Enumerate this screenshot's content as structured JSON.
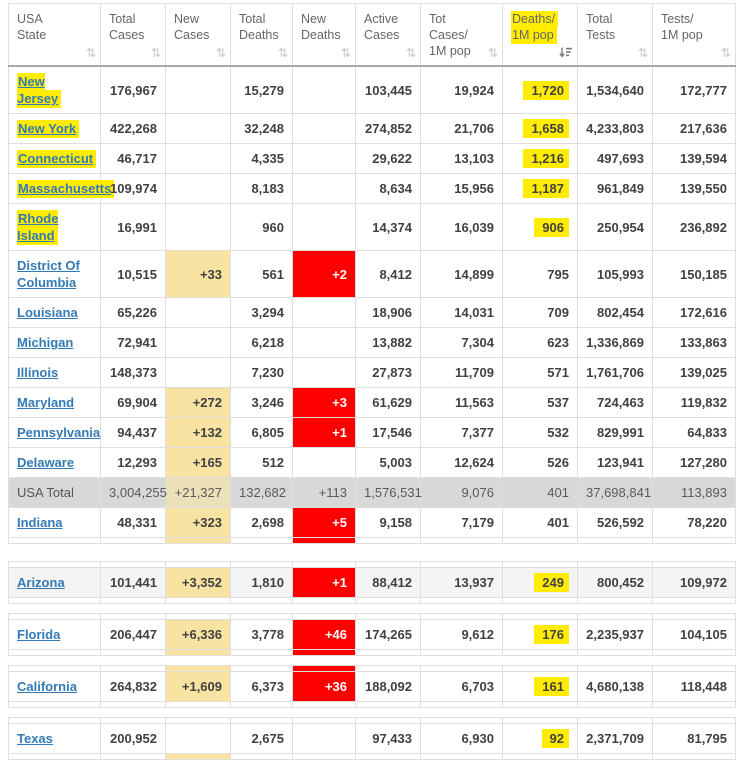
{
  "colors": {
    "highlight_marker": "#ffec00",
    "new_cases_bg": "#f8e3a3",
    "new_deaths_bg": "#ff0000",
    "total_row_bg": "#d8d8d8",
    "link_blue": "#337ab7",
    "header_text": "#666666",
    "cell_text": "#414141"
  },
  "table": {
    "columns": [
      {
        "id": "state",
        "label": "USA State",
        "label_lines": [
          "USA",
          "State"
        ],
        "sort": "unsorted",
        "highlighted": false
      },
      {
        "id": "total_cases",
        "label": "Total Cases",
        "label_lines": [
          "Total",
          "Cases"
        ],
        "sort": "unsorted",
        "highlighted": false
      },
      {
        "id": "new_cases",
        "label": "New Cases",
        "label_lines": [
          "New",
          "Cases"
        ],
        "sort": "unsorted",
        "highlighted": false
      },
      {
        "id": "total_deaths",
        "label": "Total Deaths",
        "label_lines": [
          "Total",
          "Deaths"
        ],
        "sort": "unsorted",
        "highlighted": false
      },
      {
        "id": "new_deaths",
        "label": "New Deaths",
        "label_lines": [
          "New",
          "Deaths"
        ],
        "sort": "unsorted",
        "highlighted": false
      },
      {
        "id": "active_cases",
        "label": "Active Cases",
        "label_lines": [
          "Active",
          "Cases"
        ],
        "sort": "unsorted",
        "highlighted": false
      },
      {
        "id": "cases_1m",
        "label": "Tot Cases/1M pop",
        "label_lines": [
          "Tot Cases/",
          "1M pop"
        ],
        "sort": "unsorted",
        "highlighted": false
      },
      {
        "id": "deaths_1m",
        "label": "Deaths/1M pop",
        "label_lines": [
          "Deaths/",
          "1M pop"
        ],
        "sort": "desc",
        "highlighted": true
      },
      {
        "id": "tests",
        "label": "Total Tests",
        "label_lines": [
          "Total",
          "Tests"
        ],
        "sort": "unsorted",
        "highlighted": false
      },
      {
        "id": "tests_1m",
        "label": "Tests/1M pop",
        "label_lines": [
          "Tests/",
          "1M pop"
        ],
        "sort": "unsorted",
        "highlighted": false
      }
    ],
    "main_rows": [
      {
        "state": "New Jersey",
        "state_highlighted": true,
        "is_total": false,
        "total_cases": "176,967",
        "new_cases": "",
        "total_deaths": "15,279",
        "new_deaths": "",
        "active_cases": "103,445",
        "cases_1m": "19,924",
        "deaths_1m": "1,720",
        "deaths_1m_highlighted": true,
        "tests": "1,534,640",
        "tests_1m": "172,777"
      },
      {
        "state": "New York",
        "state_highlighted": true,
        "is_total": false,
        "total_cases": "422,268",
        "new_cases": "",
        "total_deaths": "32,248",
        "new_deaths": "",
        "active_cases": "274,852",
        "cases_1m": "21,706",
        "deaths_1m": "1,658",
        "deaths_1m_highlighted": true,
        "tests": "4,233,803",
        "tests_1m": "217,636"
      },
      {
        "state": "Connecticut",
        "state_highlighted": true,
        "is_total": false,
        "total_cases": "46,717",
        "new_cases": "",
        "total_deaths": "4,335",
        "new_deaths": "",
        "active_cases": "29,622",
        "cases_1m": "13,103",
        "deaths_1m": "1,216",
        "deaths_1m_highlighted": true,
        "tests": "497,693",
        "tests_1m": "139,594"
      },
      {
        "state": "Massachusetts",
        "state_highlighted": true,
        "is_total": false,
        "total_cases": "109,974",
        "new_cases": "",
        "total_deaths": "8,183",
        "new_deaths": "",
        "active_cases": "8,634",
        "cases_1m": "15,956",
        "deaths_1m": "1,187",
        "deaths_1m_highlighted": true,
        "tests": "961,849",
        "tests_1m": "139,550"
      },
      {
        "state": "Rhode Island",
        "state_highlighted": true,
        "is_total": false,
        "total_cases": "16,991",
        "new_cases": "",
        "total_deaths": "960",
        "new_deaths": "",
        "active_cases": "14,374",
        "cases_1m": "16,039",
        "deaths_1m": "906",
        "deaths_1m_highlighted": true,
        "tests": "250,954",
        "tests_1m": "236,892"
      },
      {
        "state": "District Of Columbia",
        "state_highlighted": false,
        "is_total": false,
        "total_cases": "10,515",
        "new_cases": "+33",
        "total_deaths": "561",
        "new_deaths": "+2",
        "active_cases": "8,412",
        "cases_1m": "14,899",
        "deaths_1m": "795",
        "deaths_1m_highlighted": false,
        "tests": "105,993",
        "tests_1m": "150,185"
      },
      {
        "state": "Louisiana",
        "state_highlighted": false,
        "is_total": false,
        "total_cases": "65,226",
        "new_cases": "",
        "total_deaths": "3,294",
        "new_deaths": "",
        "active_cases": "18,906",
        "cases_1m": "14,031",
        "deaths_1m": "709",
        "deaths_1m_highlighted": false,
        "tests": "802,454",
        "tests_1m": "172,616"
      },
      {
        "state": "Michigan",
        "state_highlighted": false,
        "is_total": false,
        "total_cases": "72,941",
        "new_cases": "",
        "total_deaths": "6,218",
        "new_deaths": "",
        "active_cases": "13,882",
        "cases_1m": "7,304",
        "deaths_1m": "623",
        "deaths_1m_highlighted": false,
        "tests": "1,336,869",
        "tests_1m": "133,863"
      },
      {
        "state": "Illinois",
        "state_highlighted": false,
        "is_total": false,
        "total_cases": "148,373",
        "new_cases": "",
        "total_deaths": "7,230",
        "new_deaths": "",
        "active_cases": "27,873",
        "cases_1m": "11,709",
        "deaths_1m": "571",
        "deaths_1m_highlighted": false,
        "tests": "1,761,706",
        "tests_1m": "139,025"
      },
      {
        "state": "Maryland",
        "state_highlighted": false,
        "is_total": false,
        "total_cases": "69,904",
        "new_cases": "+272",
        "total_deaths": "3,246",
        "new_deaths": "+3",
        "active_cases": "61,629",
        "cases_1m": "11,563",
        "deaths_1m": "537",
        "deaths_1m_highlighted": false,
        "tests": "724,463",
        "tests_1m": "119,832"
      },
      {
        "state": "Pennsylvania",
        "state_highlighted": false,
        "is_total": false,
        "total_cases": "94,437",
        "new_cases": "+132",
        "total_deaths": "6,805",
        "new_deaths": "+1",
        "active_cases": "17,546",
        "cases_1m": "7,377",
        "deaths_1m": "532",
        "deaths_1m_highlighted": false,
        "tests": "829,991",
        "tests_1m": "64,833"
      },
      {
        "state": "Delaware",
        "state_highlighted": false,
        "is_total": false,
        "total_cases": "12,293",
        "new_cases": "+165",
        "total_deaths": "512",
        "new_deaths": "",
        "active_cases": "5,003",
        "cases_1m": "12,624",
        "deaths_1m": "526",
        "deaths_1m_highlighted": false,
        "tests": "123,941",
        "tests_1m": "127,280"
      },
      {
        "state": "USA Total",
        "state_highlighted": false,
        "is_total": true,
        "total_cases": "3,004,255",
        "new_cases": "+21,327",
        "total_deaths": "132,682",
        "new_deaths": "+113",
        "active_cases": "1,576,531",
        "cases_1m": "9,076",
        "deaths_1m": "401",
        "deaths_1m_highlighted": false,
        "tests": "37,698,841",
        "tests_1m": "113,893"
      },
      {
        "state": "Indiana",
        "state_highlighted": false,
        "is_total": false,
        "total_cases": "48,331",
        "new_cases": "+323",
        "total_deaths": "2,698",
        "new_deaths": "+5",
        "active_cases": "9,158",
        "cases_1m": "7,179",
        "deaths_1m": "401",
        "deaths_1m_highlighted": false,
        "tests": "526,592",
        "tests_1m": "78,220"
      }
    ],
    "main_bottom_sliver": {
      "new_cases": "tan",
      "new_deaths": "red"
    },
    "bands": [
      {
        "top_sliver": {},
        "bottom_sliver": {},
        "row": {
          "state": "Arizona",
          "state_highlighted": false,
          "is_total": false,
          "shaded": true,
          "total_cases": "101,441",
          "new_cases": "+3,352",
          "total_deaths": "1,810",
          "new_deaths": "+1",
          "active_cases": "88,412",
          "cases_1m": "13,937",
          "deaths_1m": "249",
          "deaths_1m_highlighted": true,
          "tests": "800,452",
          "tests_1m": "109,972"
        }
      },
      {
        "top_sliver": {},
        "bottom_sliver": {
          "new_cases": "tan",
          "new_deaths": "red"
        },
        "row": {
          "state": "Florida",
          "state_highlighted": false,
          "is_total": false,
          "shaded": false,
          "total_cases": "206,447",
          "new_cases": "+6,336",
          "total_deaths": "3,778",
          "new_deaths": "+46",
          "active_cases": "174,265",
          "cases_1m": "9,612",
          "deaths_1m": "176",
          "deaths_1m_highlighted": true,
          "tests": "2,235,937",
          "tests_1m": "104,105"
        }
      },
      {
        "top_sliver": {
          "new_cases": "tan",
          "new_deaths": "red"
        },
        "bottom_sliver": {},
        "row": {
          "state": "California",
          "state_highlighted": false,
          "is_total": false,
          "shaded": false,
          "total_cases": "264,832",
          "new_cases": "+1,609",
          "total_deaths": "6,373",
          "new_deaths": "+36",
          "active_cases": "188,092",
          "cases_1m": "6,703",
          "deaths_1m": "161",
          "deaths_1m_highlighted": true,
          "tests": "4,680,138",
          "tests_1m": "118,448"
        }
      },
      {
        "top_sliver": {},
        "bottom_sliver": {
          "new_cases": "tan"
        },
        "row": {
          "state": "Texas",
          "state_highlighted": false,
          "is_total": false,
          "shaded": false,
          "total_cases": "200,952",
          "new_cases": "",
          "total_deaths": "2,675",
          "new_deaths": "",
          "active_cases": "97,433",
          "cases_1m": "6,930",
          "deaths_1m": "92",
          "deaths_1m_highlighted": true,
          "tests": "2,371,709",
          "tests_1m": "81,795"
        }
      }
    ]
  }
}
